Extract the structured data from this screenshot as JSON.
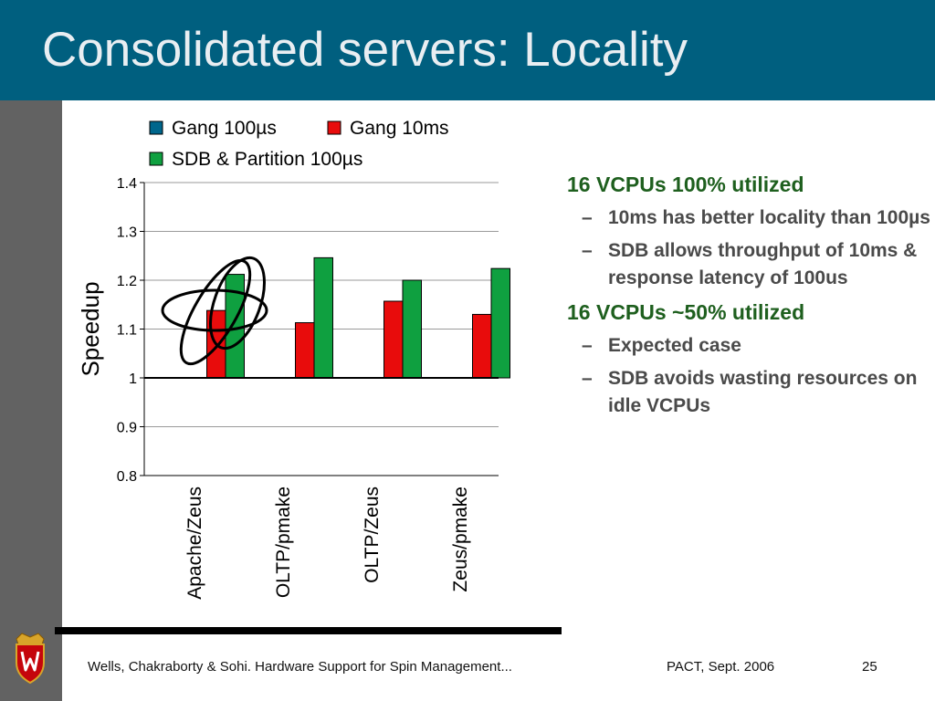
{
  "slide": {
    "title": "Consolidated servers: Locality"
  },
  "bullets": [
    {
      "heading": "16 VCPUs 100% utilized",
      "subs": [
        "10ms has better locality than 100µs",
        "SDB allows throughput of 10ms & response latency of 100us"
      ]
    },
    {
      "heading": "16 VCPUs ~50% utilized",
      "subs": [
        "Expected case",
        "SDB avoids wasting resources on idle VCPUs"
      ]
    }
  ],
  "footer": {
    "citation": "Wells, Chakraborty & Sohi.  Hardware Support for Spin Management...",
    "venue": "PACT, Sept. 2006",
    "page": "25"
  },
  "chart_data": {
    "type": "bar",
    "categories": [
      "Apache/Zeus",
      "OLTP/pmake",
      "OLTP/Zeus",
      "Zeus/pmake"
    ],
    "series": [
      {
        "name": "Gang 100µs",
        "color": "#00668c",
        "values": [
          1.0,
          1.0,
          1.0,
          1.0
        ]
      },
      {
        "name": "Gang 10ms",
        "color": "#e80c0c",
        "values": [
          1.138,
          1.113,
          1.157,
          1.13
        ]
      },
      {
        "name": "SDB & Partition 100µs",
        "color": "#0fa040",
        "values": [
          1.212,
          1.246,
          1.2,
          1.224
        ]
      }
    ],
    "ylabel": "Speedup",
    "xlabel": "",
    "ylim": [
      0.8,
      1.4
    ],
    "yticks": [
      "0.8",
      "0.9",
      "1",
      "1.1",
      "1.2",
      "1.3",
      "1.4"
    ],
    "baseline": 1.0,
    "grid": true,
    "legend": "top",
    "annotation": "hand-drawn ellipses circling the Apache/Zeus bars"
  }
}
